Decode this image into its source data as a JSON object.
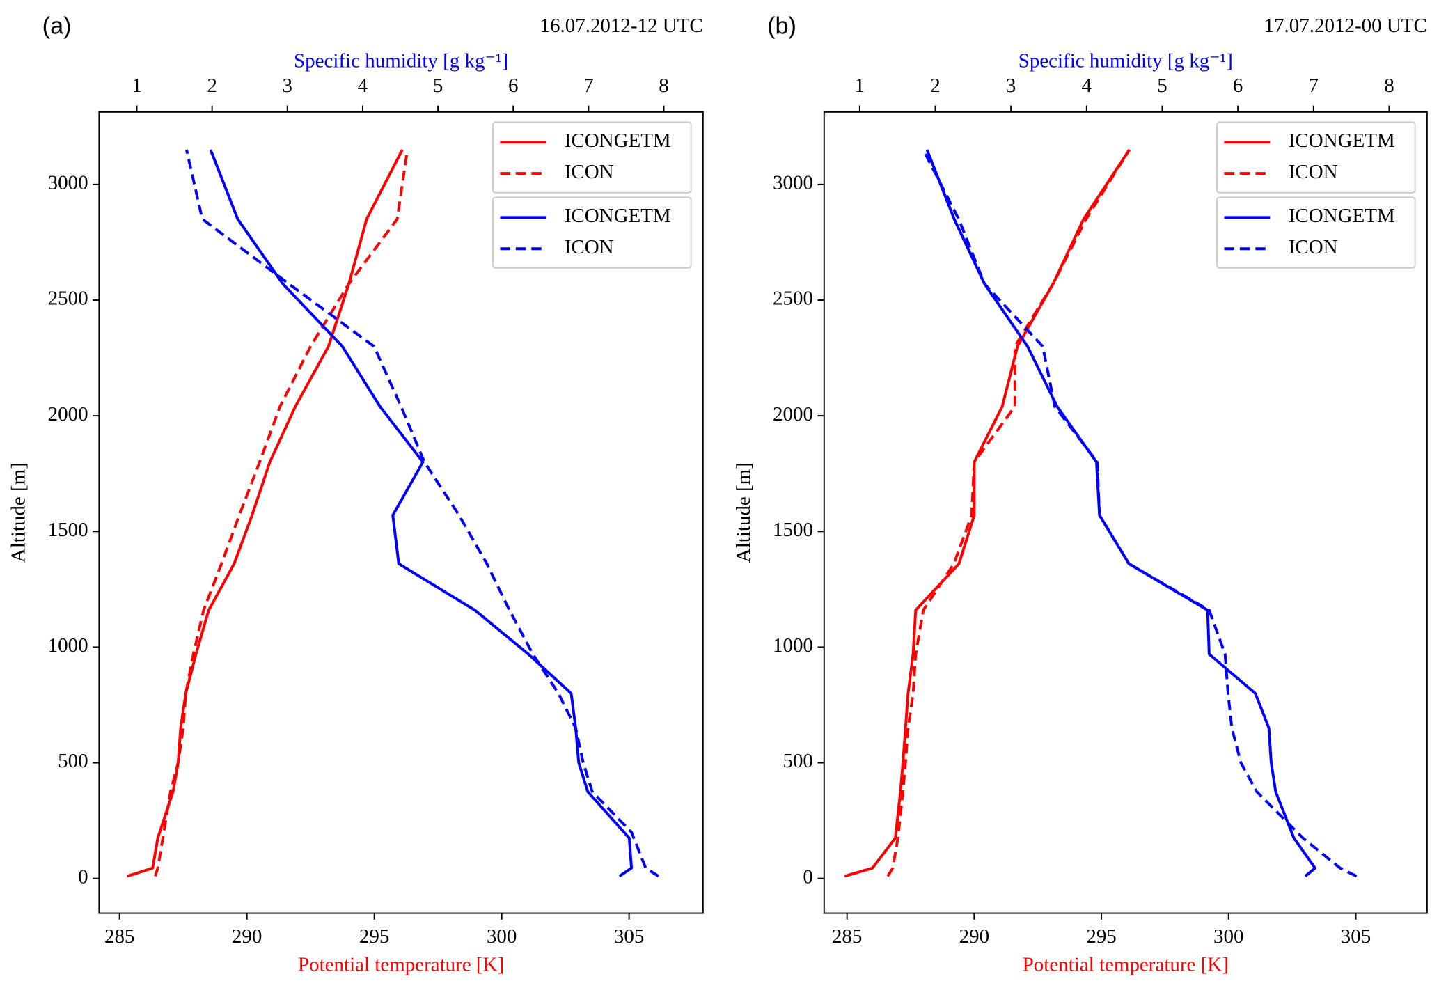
{
  "chart_data": [
    {
      "type": "line",
      "label": "(a)",
      "title": "16.07.2012-12 UTC",
      "xlabel": "Potential temperature [K]",
      "x2label": "Specific humidity [g kg⁻¹]",
      "ylabel": "Altitude [m]",
      "xlim": [
        284.2,
        307.9
      ],
      "xticks": [
        285,
        290,
        295,
        300,
        305
      ],
      "x2lim": [
        0.5,
        8.52
      ],
      "x2ticks": [
        1,
        2,
        3,
        4,
        5,
        6,
        7,
        8
      ],
      "ylim": [
        -150,
        3313
      ],
      "yticks": [
        0,
        500,
        1000,
        1500,
        2000,
        2500,
        3000
      ],
      "legend": "upper right",
      "series": [
        {
          "name": "ICONGETM",
          "color": "#ff0000",
          "dash": "solid",
          "axis": "x",
          "x": [
            285.3,
            286.3,
            286.5,
            287.1,
            287.3,
            287.4,
            287.6,
            288.0,
            288.5,
            289.5,
            290.2,
            290.9,
            291.9,
            293.2,
            294.0,
            294.7,
            296.1
          ],
          "y": [
            10,
            45,
            175,
            375,
            500,
            650,
            800,
            970,
            1160,
            1360,
            1570,
            1800,
            2040,
            2300,
            2570,
            2850,
            3150
          ]
        },
        {
          "name": "ICON",
          "color": "#ff0000",
          "dash": "dashed",
          "axis": "x",
          "x": [
            286.4,
            286.5,
            286.7,
            287.0,
            287.3,
            287.5,
            287.6,
            287.9,
            288.3,
            289.0,
            289.7,
            290.5,
            291.3,
            292.5,
            294.0,
            295.9,
            296.3
          ],
          "y": [
            10,
            45,
            175,
            375,
            500,
            650,
            800,
            970,
            1160,
            1360,
            1570,
            1800,
            2040,
            2300,
            2570,
            2850,
            3150
          ]
        },
        {
          "name": "ICONGETM",
          "color": "#0000ff",
          "dash": "solid",
          "axis": "x2",
          "x": [
            7.41,
            7.57,
            7.54,
            6.99,
            6.87,
            6.83,
            6.77,
            6.2,
            5.49,
            4.48,
            4.4,
            4.8,
            4.23,
            3.73,
            2.94,
            2.34,
            1.98
          ],
          "y": [
            10,
            45,
            175,
            375,
            500,
            650,
            800,
            970,
            1160,
            1360,
            1570,
            1800,
            2040,
            2300,
            2570,
            2850,
            3150
          ]
        },
        {
          "name": "ICON",
          "color": "#0000ff",
          "dash": "dashed",
          "axis": "x2",
          "x": [
            7.93,
            7.76,
            7.57,
            7.05,
            6.93,
            6.83,
            6.6,
            6.26,
            5.95,
            5.65,
            5.28,
            4.82,
            4.51,
            4.15,
            3.02,
            1.87,
            1.66
          ],
          "y": [
            10,
            45,
            200,
            375,
            500,
            650,
            800,
            970,
            1160,
            1360,
            1570,
            1800,
            2040,
            2300,
            2570,
            2850,
            3150
          ]
        }
      ]
    },
    {
      "type": "line",
      "label": "(b)",
      "title": "17.07.2012-00 UTC",
      "xlabel": "Potential temperature [K]",
      "x2label": "Specific humidity [g kg⁻¹]",
      "ylabel": "Altitude [m]",
      "xlim": [
        284.1,
        307.8
      ],
      "xticks": [
        285,
        290,
        295,
        300,
        305
      ],
      "x2lim": [
        0.53,
        8.5
      ],
      "x2ticks": [
        1,
        2,
        3,
        4,
        5,
        6,
        7,
        8
      ],
      "ylim": [
        -150,
        3313
      ],
      "yticks": [
        0,
        500,
        1000,
        1500,
        2000,
        2500,
        3000
      ],
      "legend": "upper right",
      "series": [
        {
          "name": "ICONGETM",
          "color": "#ff0000",
          "dash": "solid",
          "axis": "x",
          "x": [
            284.9,
            286.0,
            286.9,
            287.1,
            287.2,
            287.3,
            287.4,
            287.6,
            287.7,
            289.4,
            290.0,
            290.0,
            291.1,
            291.7,
            293.1,
            294.3,
            296.1
          ],
          "y": [
            10,
            45,
            175,
            375,
            500,
            650,
            800,
            970,
            1160,
            1360,
            1570,
            1800,
            2040,
            2300,
            2570,
            2850,
            3150
          ]
        },
        {
          "name": "ICON",
          "color": "#ff0000",
          "dash": "dashed",
          "axis": "x",
          "x": [
            286.6,
            286.8,
            287.0,
            287.2,
            287.3,
            287.4,
            287.6,
            287.7,
            288.0,
            289.2,
            289.9,
            290.0,
            291.6,
            291.6,
            293.1,
            294.4,
            296.1
          ],
          "y": [
            10,
            45,
            175,
            375,
            500,
            650,
            800,
            970,
            1160,
            1360,
            1570,
            1800,
            2040,
            2300,
            2570,
            2850,
            3150
          ]
        },
        {
          "name": "ICONGETM",
          "color": "#0000ff",
          "dash": "solid",
          "axis": "x2",
          "x": [
            6.89,
            7.02,
            6.74,
            6.5,
            6.44,
            6.41,
            6.23,
            5.62,
            5.6,
            4.56,
            4.17,
            4.13,
            3.61,
            3.22,
            2.65,
            2.25,
            1.89
          ],
          "y": [
            10,
            45,
            175,
            375,
            500,
            650,
            800,
            970,
            1160,
            1360,
            1570,
            1800,
            2040,
            2300,
            2570,
            2850,
            3150
          ]
        },
        {
          "name": "ICON",
          "color": "#0000ff",
          "dash": "dashed",
          "axis": "x2",
          "x": [
            7.57,
            7.35,
            6.86,
            6.25,
            6.04,
            5.92,
            5.87,
            5.83,
            5.62,
            4.56,
            4.17,
            4.14,
            3.58,
            3.42,
            2.65,
            2.31,
            1.84
          ],
          "y": [
            10,
            45,
            175,
            375,
            500,
            650,
            800,
            970,
            1160,
            1360,
            1570,
            1800,
            2040,
            2300,
            2570,
            2850,
            3150
          ]
        }
      ]
    }
  ]
}
